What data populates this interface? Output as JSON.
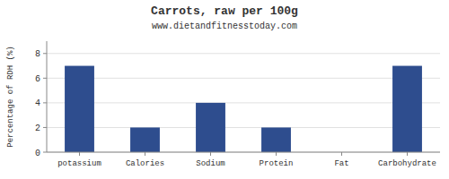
{
  "chart_data": {
    "type": "bar",
    "title": "Carrots, raw per 100g",
    "subtitle": "www.dietandfitnesstoday.com",
    "ylabel": "Percentage of RDH (%)",
    "categories": [
      "potassium",
      "Calories",
      "Sodium",
      "Protein",
      "Fat",
      "Carbohydrate"
    ],
    "values": [
      7,
      2,
      4,
      2,
      0,
      7
    ],
    "color": "#2e4d8e",
    "ylim": [
      0,
      9
    ],
    "yticks": [
      0,
      2,
      4,
      6,
      8
    ],
    "grid": true
  }
}
